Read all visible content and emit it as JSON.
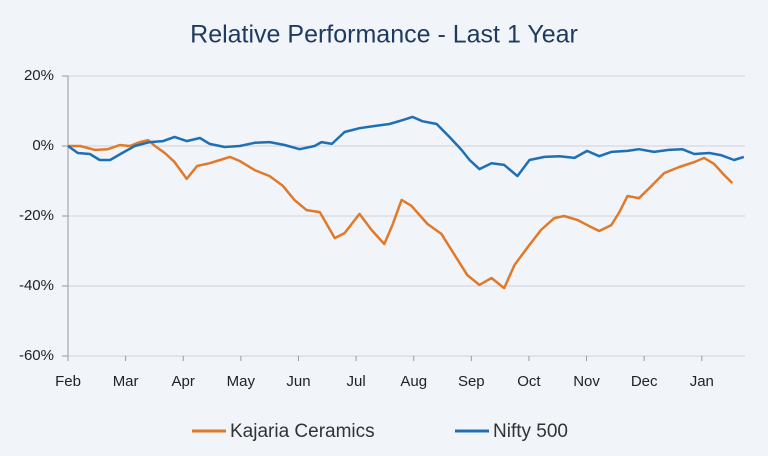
{
  "chart_data": {
    "type": "line",
    "title": "Relative Performance - Last 1 Year",
    "xlim": [
      0,
      11.75
    ],
    "xticks": [
      {
        "value": 0,
        "label": "Feb"
      },
      {
        "value": 1,
        "label": "Mar"
      },
      {
        "value": 2,
        "label": "Apr"
      },
      {
        "value": 3,
        "label": "May"
      },
      {
        "value": 4,
        "label": "Jun"
      },
      {
        "value": 5,
        "label": "Jul"
      },
      {
        "value": 6,
        "label": "Aug"
      },
      {
        "value": 7,
        "label": "Sep"
      },
      {
        "value": 8,
        "label": "Oct"
      },
      {
        "value": 9,
        "label": "Nov"
      },
      {
        "value": 10,
        "label": "Dec"
      },
      {
        "value": 11,
        "label": "Jan"
      }
    ],
    "ylim": [
      -60,
      20
    ],
    "yticks": [
      {
        "value": 20,
        "label": "20%"
      },
      {
        "value": 0,
        "label": "0%"
      },
      {
        "value": -20,
        "label": "-20%"
      },
      {
        "value": -40,
        "label": "-40%"
      },
      {
        "value": -60,
        "label": "-60%"
      }
    ],
    "grid": true,
    "legend": "bottom",
    "series": [
      {
        "name": "Kajaria Ceramics",
        "color": "#e07a2a",
        "x": [
          0,
          0.21,
          0.47,
          0.69,
          0.9,
          1.07,
          1.25,
          1.39,
          1.51,
          1.68,
          1.85,
          2.06,
          2.24,
          2.46,
          2.64,
          2.81,
          2.98,
          3.24,
          3.5,
          3.73,
          3.93,
          4.14,
          4.37,
          4.63,
          4.8,
          5.06,
          5.27,
          5.49,
          5.63,
          5.79,
          5.96,
          6.24,
          6.48,
          6.71,
          6.93,
          7.14,
          7.35,
          7.57,
          7.75,
          7.97,
          8.21,
          8.44,
          8.61,
          8.84,
          9.05,
          9.22,
          9.43,
          9.57,
          9.71,
          9.91,
          10.09,
          10.35,
          10.61,
          10.87,
          11.04,
          11.21,
          11.39,
          11.53
        ],
        "values": [
          0,
          0,
          -1.1,
          -0.9,
          0.3,
          0,
          1.1,
          1.7,
          0,
          -2,
          -4.6,
          -9.4,
          -5.7,
          -4.9,
          -4,
          -3.1,
          -4.3,
          -6.9,
          -8.6,
          -11.4,
          -15.4,
          -18.3,
          -18.9,
          -26.3,
          -24.9,
          -19.4,
          -24,
          -28,
          -22.6,
          -15.4,
          -17.1,
          -22.3,
          -25.1,
          -31.1,
          -36.9,
          -39.7,
          -37.7,
          -40.6,
          -34,
          -29.1,
          -24,
          -20.6,
          -20,
          -21.1,
          -22.9,
          -24.3,
          -22.6,
          -18.9,
          -14.3,
          -14.9,
          -12,
          -7.7,
          -6,
          -4.6,
          -3.4,
          -5.1,
          -8.3,
          -10.6
        ]
      },
      {
        "name": "Nifty 500",
        "color": "#1f6fb5",
        "x": [
          0,
          0.17,
          0.38,
          0.55,
          0.73,
          0.94,
          1.16,
          1.42,
          1.65,
          1.85,
          2.06,
          2.29,
          2.46,
          2.72,
          2.98,
          3.24,
          3.5,
          3.76,
          4.02,
          4.28,
          4.4,
          4.58,
          4.8,
          5.06,
          5.32,
          5.58,
          5.81,
          5.98,
          6.15,
          6.4,
          6.62,
          6.83,
          6.97,
          7.14,
          7.35,
          7.57,
          7.8,
          8.01,
          8.27,
          8.53,
          8.79,
          9.01,
          9.22,
          9.43,
          9.71,
          9.91,
          10.17,
          10.43,
          10.66,
          10.87,
          11.13,
          11.33,
          11.56,
          11.73
        ],
        "values": [
          0,
          -2,
          -2.3,
          -4,
          -4,
          -2,
          0,
          1.1,
          1.4,
          2.6,
          1.4,
          2.3,
          0.6,
          -0.3,
          0,
          0.9,
          1.1,
          0.3,
          -0.9,
          0,
          1.1,
          0.6,
          4,
          5.1,
          5.7,
          6.3,
          7.4,
          8.3,
          7.1,
          6.3,
          2.6,
          -1.1,
          -4,
          -6.6,
          -4.9,
          -5.4,
          -8.6,
          -4,
          -3.1,
          -2.9,
          -3.4,
          -1.4,
          -2.9,
          -1.7,
          -1.4,
          -0.9,
          -1.7,
          -1.1,
          -0.9,
          -2.3,
          -2,
          -2.6,
          -4,
          -3.1
        ]
      }
    ]
  }
}
